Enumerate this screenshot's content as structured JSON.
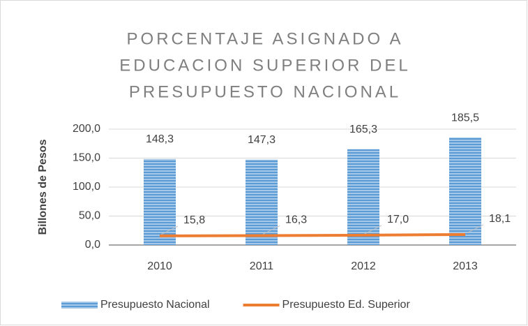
{
  "chart_data": {
    "type": "combo",
    "title": [
      "PORCENTAJE ASIGNADO A",
      "EDUCACION SUPERIOR DEL",
      "PRESUPUESTO NACIONAL"
    ],
    "y_label": "Billones de Pesos",
    "categories": [
      "2010",
      "2011",
      "2012",
      "2013"
    ],
    "ylim": [
      0,
      200
    ],
    "yticks": [
      {
        "value": 0,
        "label": "0,0"
      },
      {
        "value": 50,
        "label": "50,0"
      },
      {
        "value": 100,
        "label": "100,0"
      },
      {
        "value": 150,
        "label": "150,0"
      },
      {
        "value": 200,
        "label": "200,0"
      }
    ],
    "grid": true,
    "legend": "bottom",
    "series": [
      {
        "name": "Presupuesto Nacional",
        "type": "bar",
        "color": "#5b9bd5",
        "values": [
          148.3,
          147.3,
          165.3,
          185.5
        ],
        "value_labels": [
          "148,3",
          "147,3",
          "165,3",
          "185,5"
        ]
      },
      {
        "name": "Presupuesto Ed. Superior",
        "type": "line",
        "color": "#ed7d31",
        "values": [
          15.8,
          16.3,
          17.0,
          18.1
        ],
        "value_labels": [
          "15,8",
          "16,3",
          "17,0",
          "18,1"
        ]
      }
    ]
  }
}
